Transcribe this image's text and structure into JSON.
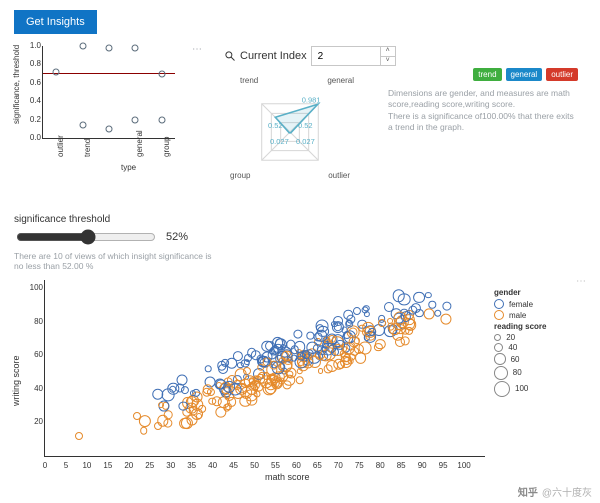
{
  "button_label": "Get Insights",
  "sig_chart": {
    "type": "dot-plot",
    "ylabel": "significance, threshold",
    "xlabel": "type",
    "ylim": [
      0,
      1
    ],
    "yticks": [
      0.0,
      0.2,
      0.4,
      0.6,
      0.8,
      1.0
    ],
    "categories": [
      "outlier",
      "trend",
      "",
      "general",
      "group"
    ],
    "points": [
      {
        "cat": "outlier",
        "y": 0.72
      },
      {
        "cat": "trend",
        "y": 1.0
      },
      {
        "cat": "trend",
        "y": 0.14
      },
      {
        "cat": "",
        "y": 0.98
      },
      {
        "cat": "",
        "y": 0.1
      },
      {
        "cat": "general",
        "y": 0.98
      },
      {
        "cat": "general",
        "y": 0.2
      },
      {
        "cat": "group",
        "y": 0.7
      },
      {
        "cat": "group",
        "y": 0.2
      }
    ],
    "ref_line": 0.7,
    "ref_color": "#8b0000",
    "point_color": "#5a6b7a",
    "axis_color": "#333333",
    "label_fontsize": 8
  },
  "current_index": {
    "label": "Current Index",
    "value": "2"
  },
  "radar": {
    "axes": [
      "trend",
      "general",
      "outlier",
      "group"
    ],
    "values": [
      0.52,
      0.981,
      0.027,
      0.027
    ],
    "value_labels": [
      "0.52",
      "0.52",
      "0.981",
      "0.027",
      "0.027"
    ],
    "line_color": "#5ab0c7",
    "fill_color": "rgba(90,176,199,0.15)",
    "grid_color": "#d6d6d6",
    "label_color": "#555555",
    "label_fontsize": 8
  },
  "badges": [
    {
      "text": "trend",
      "color": "#3fae3f"
    },
    {
      "text": "general",
      "color": "#1b88c9"
    },
    {
      "text": "outlier",
      "color": "#d43a2a"
    }
  ],
  "description": {
    "line1": "Dimensions are gender, and measures are math score,reading score,writing score.",
    "line2": "There is a significance of100.00% that there exits a trend in the graph."
  },
  "slider": {
    "label": "significance threshold",
    "value": 52,
    "display": "52%",
    "min": 0,
    "max": 100
  },
  "slider_note": "There are 10 of views of which insight significance is no less than 52.00 %",
  "scatter": {
    "type": "scatter",
    "xlabel": "math score",
    "ylabel": "writing score",
    "xlim": [
      0,
      105
    ],
    "ylim": [
      0,
      105
    ],
    "xtick_step": 5,
    "yticks": [
      20,
      40,
      60,
      80,
      100
    ],
    "series": [
      {
        "name": "female",
        "color": "#3f6fb5"
      },
      {
        "name": "male",
        "color": "#e58a2b"
      }
    ],
    "size_field": "reading score",
    "size_legend": [
      20,
      40,
      60,
      80,
      100
    ],
    "point_border_width": 1.2,
    "background_color": "#ffffff",
    "cluster": {
      "n": 300,
      "x_center": 60,
      "x_spread": 25,
      "y_base_offset_female": 6,
      "y_base_offset_male": -4,
      "jitter": 10,
      "slope": 0.95
    }
  },
  "legend": {
    "color_header": "gender",
    "size_header": "reading score"
  },
  "watermark": "六十度灰"
}
